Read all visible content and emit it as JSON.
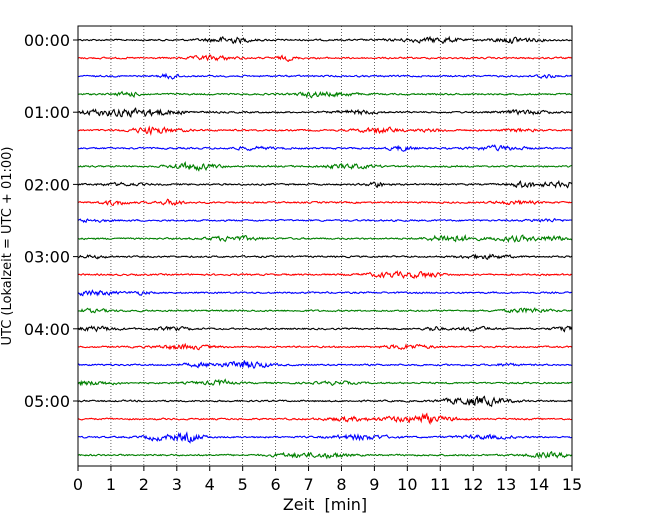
{
  "chart_data": {
    "type": "line",
    "title": "",
    "xlabel": "Zeit  [min]",
    "ylabel": "UTC (Lokalzeit = UTC + 01:00)",
    "xlim": [
      0,
      15
    ],
    "x_ticks": [
      0,
      1,
      2,
      3,
      4,
      5,
      6,
      7,
      8,
      9,
      10,
      11,
      12,
      13,
      14,
      15
    ],
    "x_tick_labels": [
      "0",
      "1",
      "2",
      "3",
      "4",
      "5",
      "6",
      "7",
      "8",
      "9",
      "10",
      "11",
      "12",
      "13",
      "14",
      "15"
    ],
    "y_tick_labels": [
      "00:00",
      "01:00",
      "02:00",
      "03:00",
      "04:00",
      "05:00"
    ],
    "trace_interval_minutes": 15,
    "trace_count": 24,
    "trace_colors": [
      "#000000",
      "#ff0000",
      "#0000ff",
      "#008000"
    ],
    "grid": "vertical dotted lines at each minute",
    "legend": "none"
  }
}
